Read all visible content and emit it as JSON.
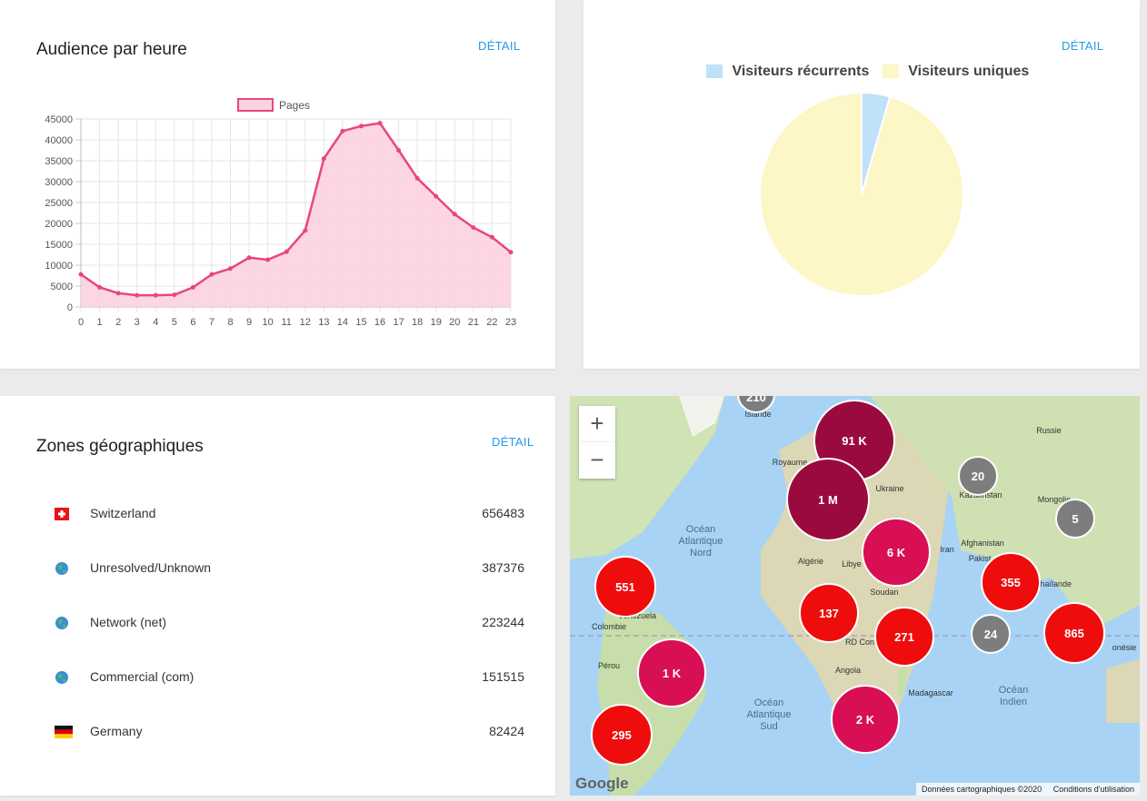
{
  "audience": {
    "title": "Audience par heure",
    "detail": "DÉTAIL",
    "legend": "Pages",
    "colors": {
      "line": "#e8467c",
      "fill": "#fcd2e0"
    }
  },
  "visitors": {
    "detail": "DÉTAIL",
    "legend": [
      {
        "label": "Visiteurs récurrents",
        "color": "#bfe1fa"
      },
      {
        "label": "Visiteurs uniques",
        "color": "#fdf6c6"
      }
    ]
  },
  "zones": {
    "title": "Zones géographiques",
    "detail": "DÉTAIL",
    "rows": [
      {
        "flag": "swiss-flag-icon",
        "name": "Switzerland",
        "count": "656483"
      },
      {
        "flag": "globe-icon",
        "name": "Unresolved/Unknown",
        "count": "387376"
      },
      {
        "flag": "globe-icon",
        "name": "Network (net)",
        "count": "223244"
      },
      {
        "flag": "globe-icon",
        "name": "Commercial (com)",
        "count": "151515"
      },
      {
        "flag": "german-flag-icon",
        "name": "Germany",
        "count": "82424"
      }
    ]
  },
  "map": {
    "zoom_in": "+",
    "zoom_out": "−",
    "attribution": "Données cartographiques ©2020",
    "terms": "Conditions d'utilisation",
    "google": "Google",
    "labels": {
      "ocean_nord_1": "Océan",
      "ocean_nord_2": "Atlantique",
      "ocean_nord_3": "Nord",
      "ocean_sud_1": "Océan",
      "ocean_sud_2": "Atlantique",
      "ocean_sud_3": "Sud",
      "ocean_indien_1": "Océan",
      "ocean_indien_2": "Indien",
      "russie": "Russie",
      "mongolie": "Mongolie",
      "kazakhstan": "Kazakhstan",
      "ukraine": "Ukraine",
      "royaume": "Royaume",
      "algerie": "Algérie",
      "libye": "Libye",
      "iran": "Iran",
      "pakistan": "Pakist",
      "afghanistan": "Afghanistan",
      "thailande": "Thaïlande",
      "soudan": "Soudan",
      "colombie": "Colombie",
      "perou": "Pérou",
      "angola": "Angola",
      "madagascar": "Madagascar",
      "islande": "Islande",
      "venezuela": "Venezuela",
      "rdcon": "RD Con",
      "indonesie": "onésie"
    },
    "clusters": [
      {
        "label": "91 K",
        "color": "#9b0a3e"
      },
      {
        "label": "1 M",
        "color": "#9b0a3e"
      },
      {
        "label": "6 K",
        "color": "#d80f55"
      },
      {
        "label": "20",
        "color": "#7d7d7d"
      },
      {
        "label": "5",
        "color": "#7d7d7d"
      },
      {
        "label": "551",
        "color": "#ee0c0c"
      },
      {
        "label": "137",
        "color": "#ee0c0c"
      },
      {
        "label": "271",
        "color": "#ee0c0c"
      },
      {
        "label": "355",
        "color": "#ee0c0c"
      },
      {
        "label": "24",
        "color": "#7d7d7d"
      },
      {
        "label": "865",
        "color": "#ee0c0c"
      },
      {
        "label": "1 K",
        "color": "#d80f55"
      },
      {
        "label": "2 K",
        "color": "#d80f55"
      },
      {
        "label": "295",
        "color": "#ee0c0c"
      },
      {
        "label": "210",
        "color": "#7d7d7d"
      }
    ]
  },
  "chart_data": [
    {
      "type": "area",
      "title": "Audience par heure",
      "series": [
        {
          "name": "Pages",
          "x": [
            0,
            1,
            2,
            3,
            4,
            5,
            6,
            7,
            8,
            9,
            10,
            11,
            12,
            13,
            14,
            15,
            16,
            17,
            18,
            19,
            20,
            21,
            22,
            23
          ],
          "values": [
            7800,
            4700,
            3300,
            2800,
            2800,
            2900,
            4700,
            7800,
            9200,
            11800,
            11300,
            13200,
            18300,
            35500,
            42100,
            43300,
            44000,
            37500,
            30800,
            26500,
            22200,
            19000,
            16700,
            13100
          ]
        }
      ],
      "x_ticks": [
        "0",
        "1",
        "2",
        "3",
        "4",
        "5",
        "6",
        "7",
        "8",
        "9",
        "10",
        "11",
        "12",
        "13",
        "14",
        "15",
        "16",
        "17",
        "18",
        "19",
        "20",
        "21",
        "22",
        "23"
      ],
      "y_ticks": [
        "0",
        "5000",
        "10000",
        "15000",
        "20000",
        "25000",
        "30000",
        "35000",
        "40000",
        "45000"
      ],
      "ylim": [
        0,
        45000
      ],
      "grid": true,
      "legend": "top"
    },
    {
      "type": "pie",
      "labels": [
        "Visiteurs récurrents",
        "Visiteurs uniques"
      ],
      "values": [
        4.5,
        95.5
      ],
      "legend": "top"
    }
  ]
}
